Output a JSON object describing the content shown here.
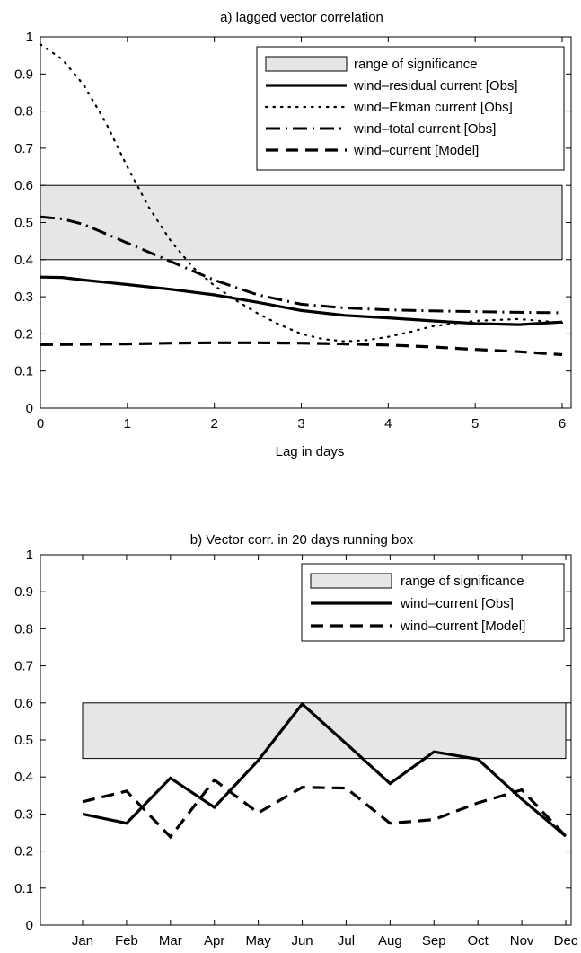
{
  "chart_data": [
    {
      "type": "line",
      "title": "a) lagged  vector correlation",
      "xlabel": "Lag in days",
      "ylabel": "",
      "xlim": [
        0,
        6
      ],
      "ylim": [
        0,
        1
      ],
      "xticks": [
        0,
        1,
        2,
        3,
        4,
        5,
        6
      ],
      "yticks": [
        0,
        0.1,
        0.2,
        0.3,
        0.4,
        0.5,
        0.6,
        0.7,
        0.8,
        0.9,
        1
      ],
      "grid": false,
      "legend_position": "top-right",
      "significance_band": {
        "name": "range of significance",
        "from": 0.4,
        "to": 0.6,
        "x_range": [
          0,
          6
        ],
        "color": "#e6e6e6"
      },
      "series": [
        {
          "name": "wind–residual current [Obs]",
          "style": "solid",
          "x": [
            0,
            0.25,
            0.5,
            1,
            1.5,
            2,
            2.5,
            3,
            3.5,
            4,
            4.5,
            5,
            5.5,
            6
          ],
          "y": [
            0.353,
            0.352,
            0.345,
            0.333,
            0.32,
            0.305,
            0.285,
            0.263,
            0.25,
            0.243,
            0.235,
            0.228,
            0.225,
            0.232
          ]
        },
        {
          "name": "wind–Ekman current [Obs]",
          "style": "dotted",
          "x": [
            0,
            0.25,
            0.5,
            0.75,
            1,
            1.25,
            1.5,
            1.75,
            2,
            2.25,
            2.5,
            2.75,
            3,
            3.25,
            3.5,
            3.75,
            4,
            4.25,
            4.5,
            5,
            5.5,
            6
          ],
          "y": [
            0.98,
            0.94,
            0.87,
            0.77,
            0.65,
            0.54,
            0.45,
            0.38,
            0.33,
            0.29,
            0.255,
            0.225,
            0.2,
            0.186,
            0.18,
            0.183,
            0.192,
            0.205,
            0.22,
            0.235,
            0.24,
            0.23
          ]
        },
        {
          "name": "wind–total current [Obs]",
          "style": "dashdot",
          "x": [
            0,
            0.25,
            0.5,
            0.75,
            1,
            1.25,
            1.5,
            1.75,
            2,
            2.25,
            2.5,
            3,
            3.5,
            4,
            4.5,
            5,
            5.5,
            6
          ],
          "y": [
            0.515,
            0.51,
            0.495,
            0.47,
            0.445,
            0.42,
            0.395,
            0.37,
            0.345,
            0.325,
            0.305,
            0.28,
            0.27,
            0.265,
            0.262,
            0.26,
            0.258,
            0.257
          ]
        },
        {
          "name": "wind–current [Model]",
          "style": "dashed",
          "x": [
            0,
            0.5,
            1,
            1.5,
            2,
            2.5,
            3,
            3.5,
            4,
            4.5,
            5,
            5.5,
            6
          ],
          "y": [
            0.171,
            0.172,
            0.173,
            0.175,
            0.176,
            0.176,
            0.175,
            0.173,
            0.17,
            0.165,
            0.158,
            0.152,
            0.144
          ]
        }
      ]
    },
    {
      "type": "line",
      "title": "b) Vector corr. in 20 days running box",
      "xlabel": "",
      "ylabel": "",
      "categories": [
        "Jan",
        "Feb",
        "Mar",
        "Apr",
        "May",
        "Jun",
        "Jul",
        "Aug",
        "Sep",
        "Oct",
        "Nov",
        "Dec"
      ],
      "ylim": [
        0,
        1
      ],
      "yticks": [
        0,
        0.1,
        0.2,
        0.3,
        0.4,
        0.5,
        0.6,
        0.7,
        0.8,
        0.9,
        1
      ],
      "grid": false,
      "legend_position": "top-right",
      "significance_band": {
        "name": "range of significance",
        "from": 0.45,
        "to": 0.6,
        "category_range": [
          "Jan",
          "Dec"
        ],
        "color": "#e6e6e6"
      },
      "series": [
        {
          "name": "wind–current [Obs]",
          "style": "solid",
          "values": [
            0.3,
            0.275,
            0.397,
            0.318,
            0.445,
            0.597,
            0.49,
            0.382,
            0.468,
            0.448,
            0.34,
            0.24
          ]
        },
        {
          "name": "wind–current [Model]",
          "style": "dashed",
          "values": [
            0.333,
            0.362,
            0.238,
            0.392,
            0.303,
            0.372,
            0.37,
            0.275,
            0.285,
            0.33,
            0.365,
            0.24
          ]
        }
      ]
    }
  ]
}
